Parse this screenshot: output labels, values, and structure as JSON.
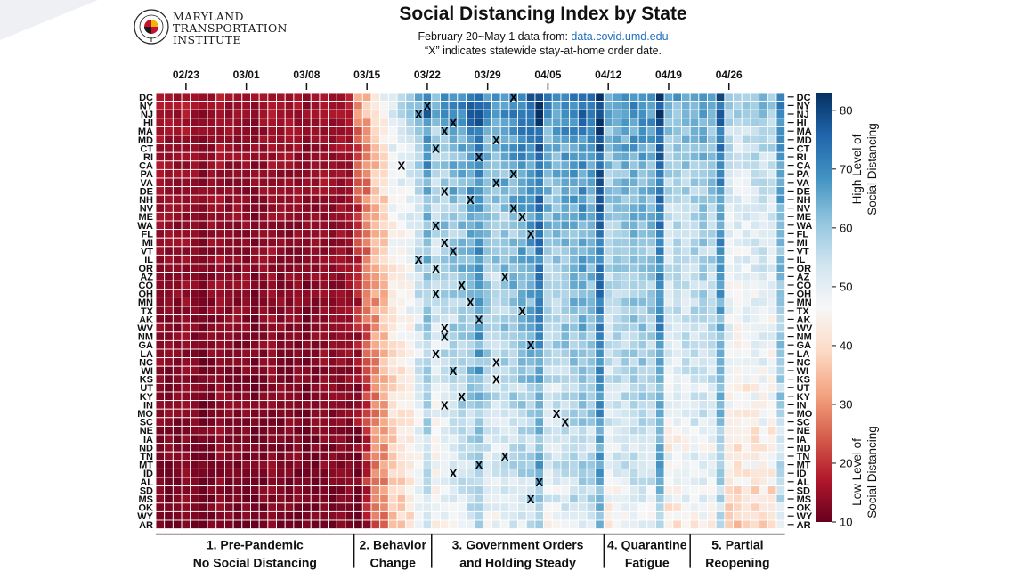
{
  "corner_color": "#eef0f3",
  "logo": {
    "line1": "MARYLAND",
    "line2": "TRANSPORTATION",
    "line3": "INSTITUTE",
    "seal_text": "UNIVERSITY OF MARYLAND"
  },
  "header": {
    "title": "Social Distancing Index by State",
    "subtitle_prefix": "February 20~May 1 data from: ",
    "subtitle_link": "data.covid.umd.edu",
    "note": "“X” indicates statewide stay-at-home order date."
  },
  "chart_data": {
    "type": "heatmap",
    "title": "Social Distancing Index by State",
    "x_range": [
      "2020-02-20",
      "2020-05-01"
    ],
    "x_ticks": [
      "02/23",
      "03/01",
      "03/08",
      "03/15",
      "03/22",
      "03/29",
      "04/05",
      "04/12",
      "04/19",
      "04/26"
    ],
    "y_states": [
      "DC",
      "NY",
      "NJ",
      "HI",
      "MA",
      "MD",
      "CT",
      "RI",
      "CA",
      "PA",
      "VA",
      "DE",
      "NH",
      "NV",
      "ME",
      "WA",
      "FL",
      "MI",
      "VT",
      "IL",
      "OR",
      "AZ",
      "CO",
      "OH",
      "MN",
      "TX",
      "AK",
      "WV",
      "NM",
      "GA",
      "LA",
      "NC",
      "WI",
      "KS",
      "UT",
      "KY",
      "IN",
      "MO",
      "SC",
      "NE",
      "IA",
      "ND",
      "TN",
      "MT",
      "ID",
      "AL",
      "SD",
      "MS",
      "OK",
      "WY",
      "AR"
    ],
    "state_level_offset": [
      22,
      20,
      19,
      17,
      14,
      13,
      12,
      11,
      10,
      9,
      8,
      8,
      7,
      7,
      6,
      6,
      5,
      5,
      4,
      4,
      3,
      3,
      2,
      2,
      1,
      1,
      0,
      0,
      -1,
      -1,
      -2,
      -2,
      -3,
      -3,
      -4,
      -4,
      -5,
      -5,
      -6,
      -6,
      -7,
      -7,
      -8,
      -8,
      -9,
      -9,
      -10,
      -10,
      -11,
      -12,
      -13
    ],
    "daily_mean_index": [
      14,
      13,
      13,
      14,
      13,
      12,
      13,
      14,
      13,
      13,
      13,
      12,
      13,
      14,
      13,
      13,
      13,
      12,
      13,
      14,
      13,
      14,
      14,
      17,
      24,
      31,
      35,
      42,
      45,
      47,
      53,
      60,
      52,
      54,
      56,
      58,
      60,
      64,
      57,
      55,
      56,
      58,
      59,
      60,
      66,
      55,
      55,
      57,
      58,
      60,
      58,
      68,
      52,
      54,
      55,
      56,
      57,
      55,
      66,
      49,
      50,
      51,
      52,
      53,
      52,
      62,
      45,
      44,
      45,
      46,
      47,
      46,
      58
    ],
    "stay_at_home_orders": {
      "DC": "04-01",
      "NY": "03-22",
      "NJ": "03-21",
      "HI": "03-25",
      "MA": "03-24",
      "MD": "03-30",
      "CT": "03-23",
      "RI": "03-28",
      "CA": "03-19",
      "PA": "04-01",
      "VA": "03-30",
      "DE": "03-24",
      "NH": "03-27",
      "NV": "04-01",
      "ME": "04-02",
      "WA": "03-23",
      "FL": "04-03",
      "MI": "03-24",
      "VT": "03-25",
      "IL": "03-21",
      "OR": "03-23",
      "AZ": "03-31",
      "CO": "03-26",
      "OH": "03-23",
      "MN": "03-27",
      "TX": "04-02",
      "AK": "03-28",
      "WV": "03-24",
      "NM": "03-24",
      "GA": "04-03",
      "LA": "03-23",
      "NC": "03-30",
      "WI": "03-25",
      "KS": "03-30",
      "UT": "",
      "KY": "03-26",
      "IN": "03-24",
      "MO": "04-06",
      "SC": "04-07",
      "NE": "",
      "IA": "",
      "ND": "",
      "TN": "03-31",
      "MT": "03-28",
      "ID": "03-25",
      "AL": "04-04",
      "SD": "",
      "MS": "04-03",
      "OK": "",
      "WY": "",
      "AR": ""
    },
    "colorbar": {
      "min": 10,
      "max": 83,
      "ticks": [
        10,
        20,
        30,
        40,
        50,
        60,
        70,
        80
      ],
      "label_high": [
        "High Level of",
        "Social Distancing"
      ],
      "label_low": [
        "Low Level of",
        "Social Distancing"
      ],
      "colors": [
        "#67001f",
        "#b2182b",
        "#d6604d",
        "#f4a582",
        "#fddbc7",
        "#f7f7f7",
        "#d1e5f0",
        "#92c5de",
        "#4393c3",
        "#2166ac",
        "#053061"
      ]
    },
    "phases": [
      {
        "line1": "1. Pre-Pandemic",
        "line2": "No Social Distancing",
        "start_day": 0,
        "end_day": 23
      },
      {
        "line1": "2. Behavior",
        "line2": "Change",
        "start_day": 23,
        "end_day": 32
      },
      {
        "line1": "3. Government Orders",
        "line2": "and Holding Steady",
        "start_day": 32,
        "end_day": 52
      },
      {
        "line1": "4. Quarantine",
        "line2": "Fatigue",
        "start_day": 52,
        "end_day": 62
      },
      {
        "line1": "5. Partial",
        "line2": "Reopening",
        "start_day": 62,
        "end_day": 73
      }
    ]
  }
}
